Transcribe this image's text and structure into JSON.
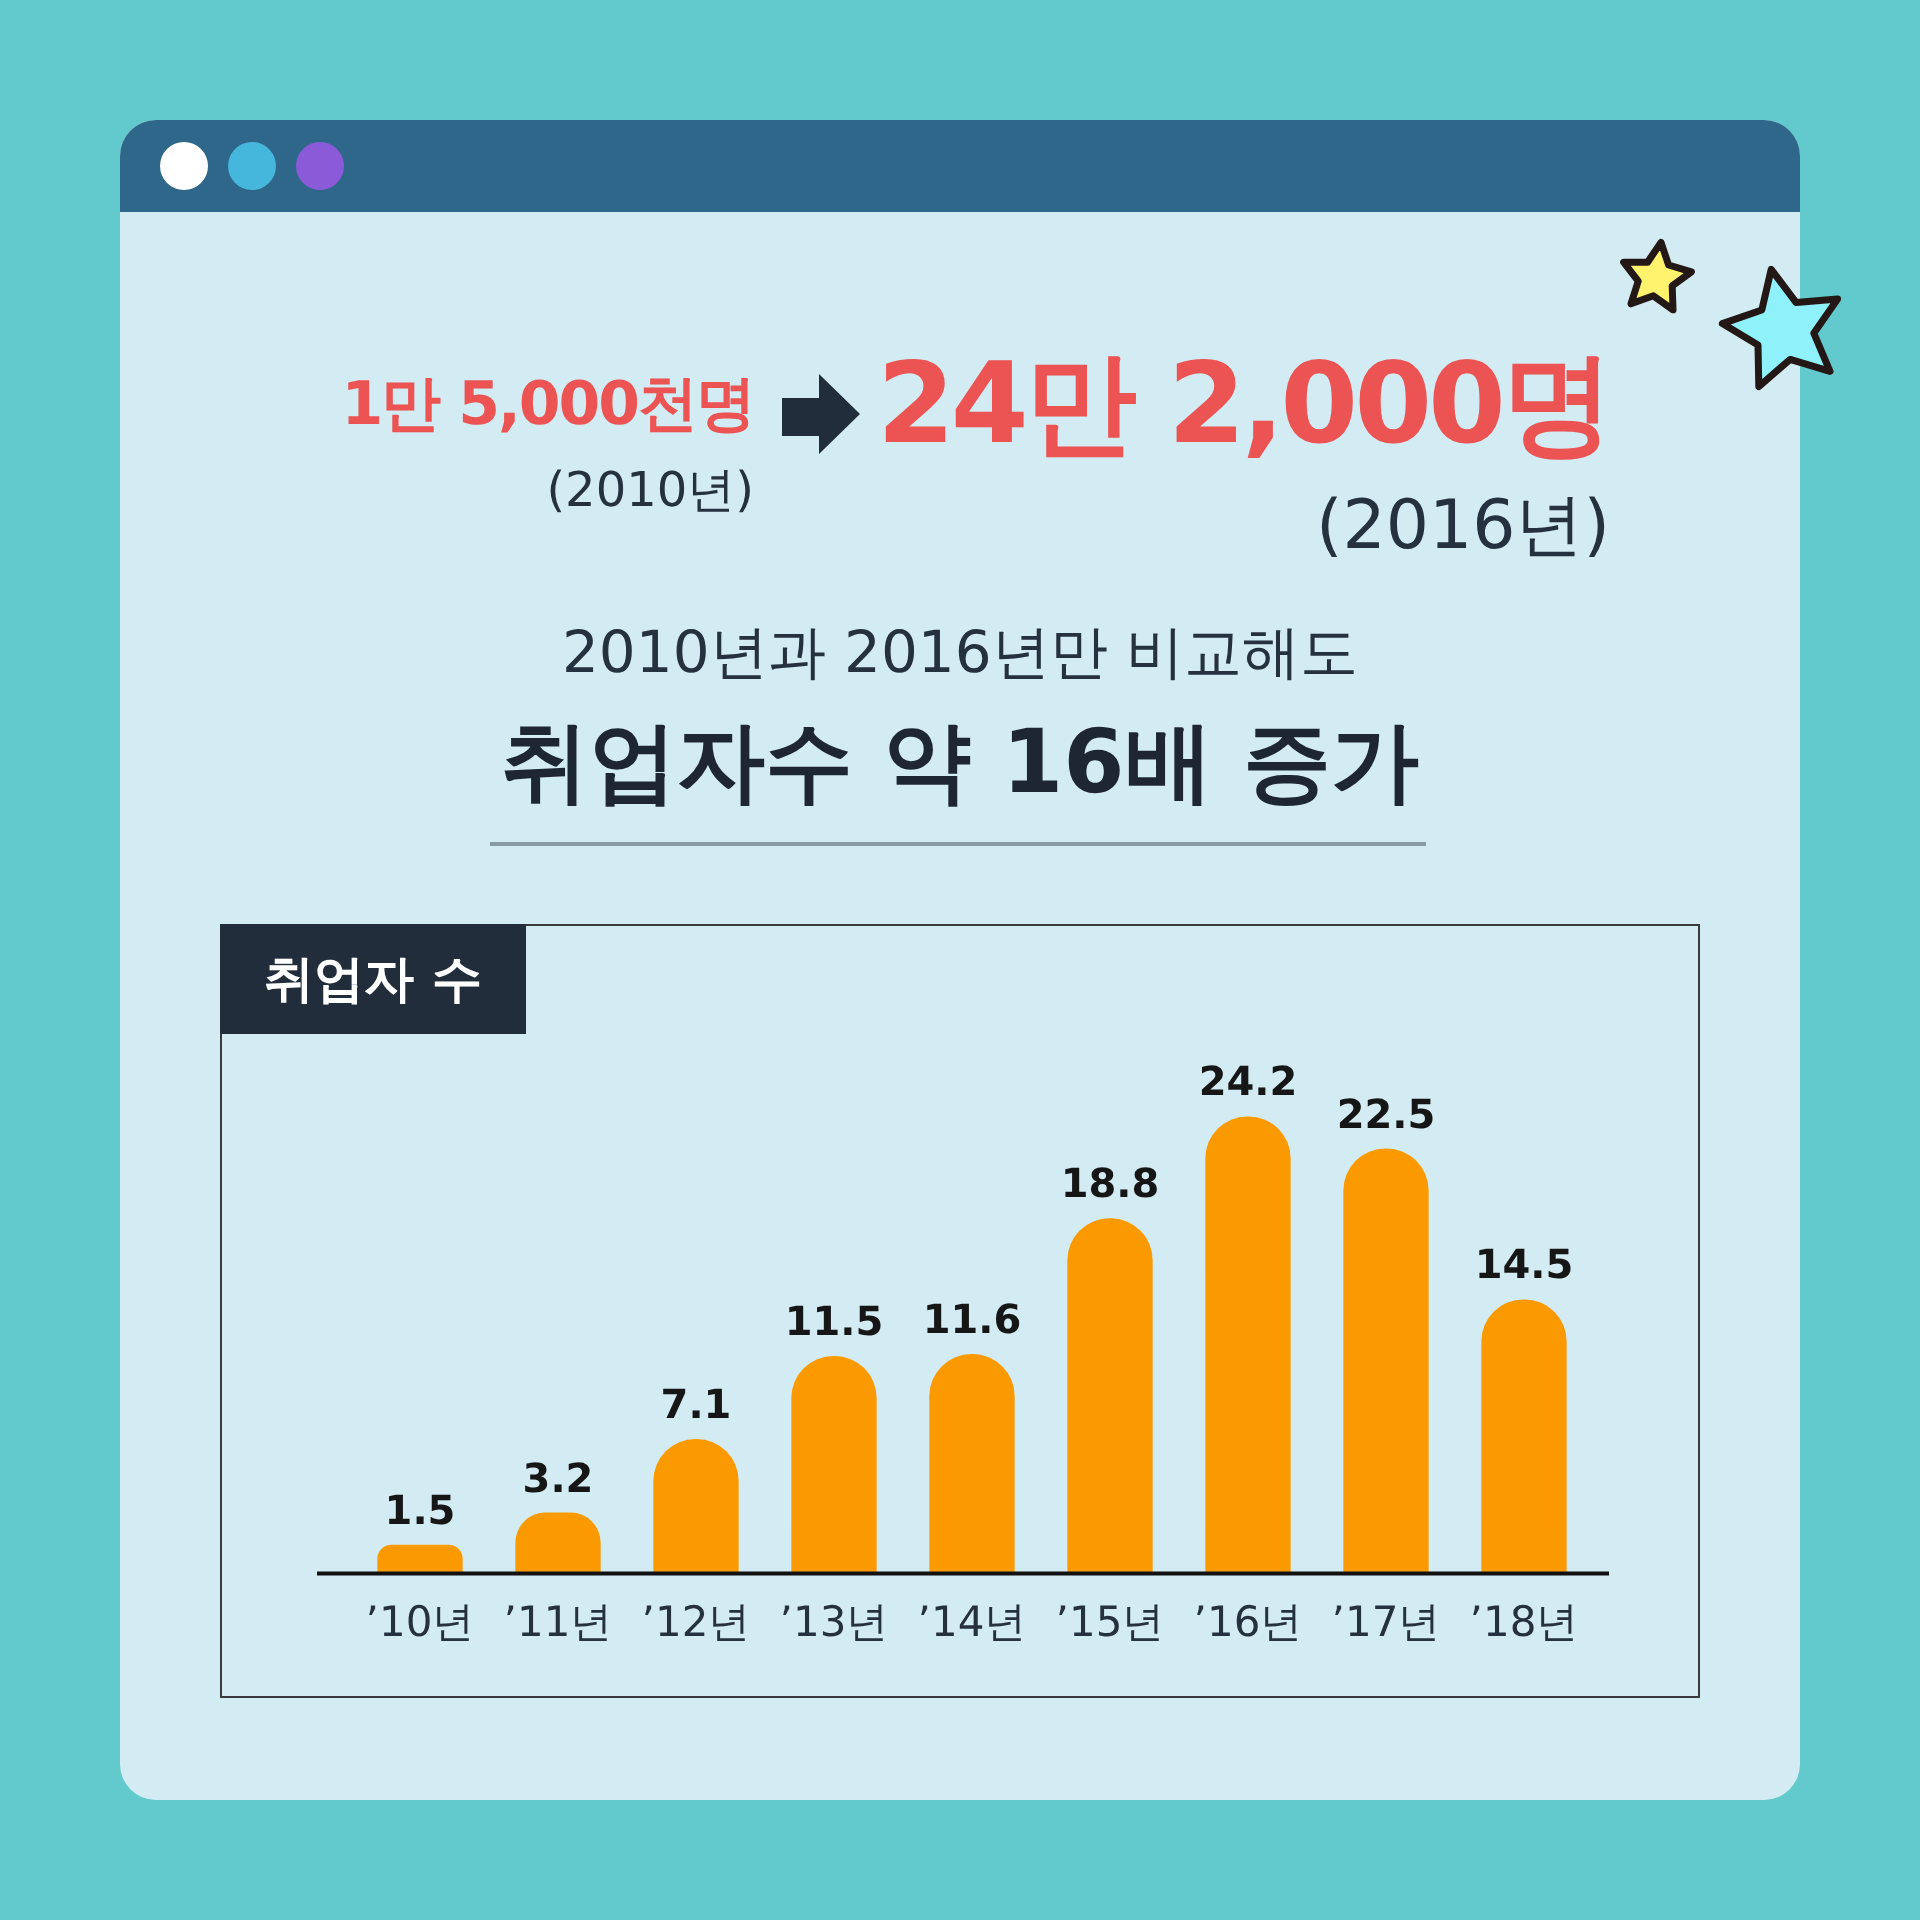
{
  "chart_data": {
    "type": "bar",
    "title": "취업자수 약 16배 증가",
    "subtitle": "2010년과 2016년만 비교해도",
    "ylabel": "취업자 수",
    "annotations": [
      "1만 5,000천명",
      "(2010년)",
      "24만 2,000명",
      "(2016년)"
    ],
    "categories": [
      "’10년",
      "’11년",
      "’12년",
      "’13년",
      "’14년",
      "’15년",
      "’16년",
      "’17년",
      "’18년"
    ],
    "values": [
      1.5,
      3.2,
      7.1,
      11.5,
      11.6,
      18.8,
      24.2,
      22.5,
      14.5
    ],
    "color": "#fb9a00",
    "data_labels": true
  }
}
